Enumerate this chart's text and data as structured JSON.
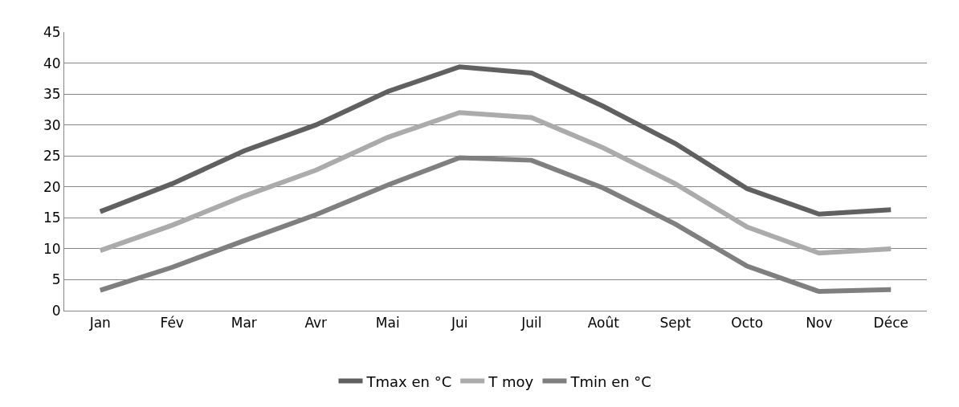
{
  "chart_data": {
    "type": "line",
    "categories": [
      "Jan",
      "Fév",
      "Mar",
      "Avr",
      "Mai",
      "Jui",
      "Juil",
      "Août",
      "Sept",
      "Octo",
      "Nov",
      "Déce"
    ],
    "series": [
      {
        "name": "Tmax en °C",
        "color": "#606060",
        "values": [
          16,
          20.5,
          25.8,
          30,
          35.4,
          39.4,
          38.4,
          33,
          27,
          19.7,
          15.6,
          16.3
        ]
      },
      {
        "name": "T moy",
        "color": "#ababab",
        "values": [
          9.7,
          13.8,
          18.5,
          22.7,
          28,
          32,
          31.2,
          26.3,
          20.5,
          13.5,
          9.3,
          10
        ]
      },
      {
        "name": "Tmin en °C",
        "color": "#7f7f7f",
        "values": [
          3.3,
          7,
          11.3,
          15.5,
          20.3,
          24.7,
          24.3,
          19.8,
          14,
          7.2,
          3.1,
          3.4
        ]
      }
    ],
    "ylim": [
      0,
      45
    ],
    "yticks": [
      0,
      5,
      10,
      15,
      20,
      25,
      30,
      35,
      40,
      45
    ],
    "grid": "y",
    "legend": "bottom",
    "marker": "none",
    "line_style": "solid"
  }
}
